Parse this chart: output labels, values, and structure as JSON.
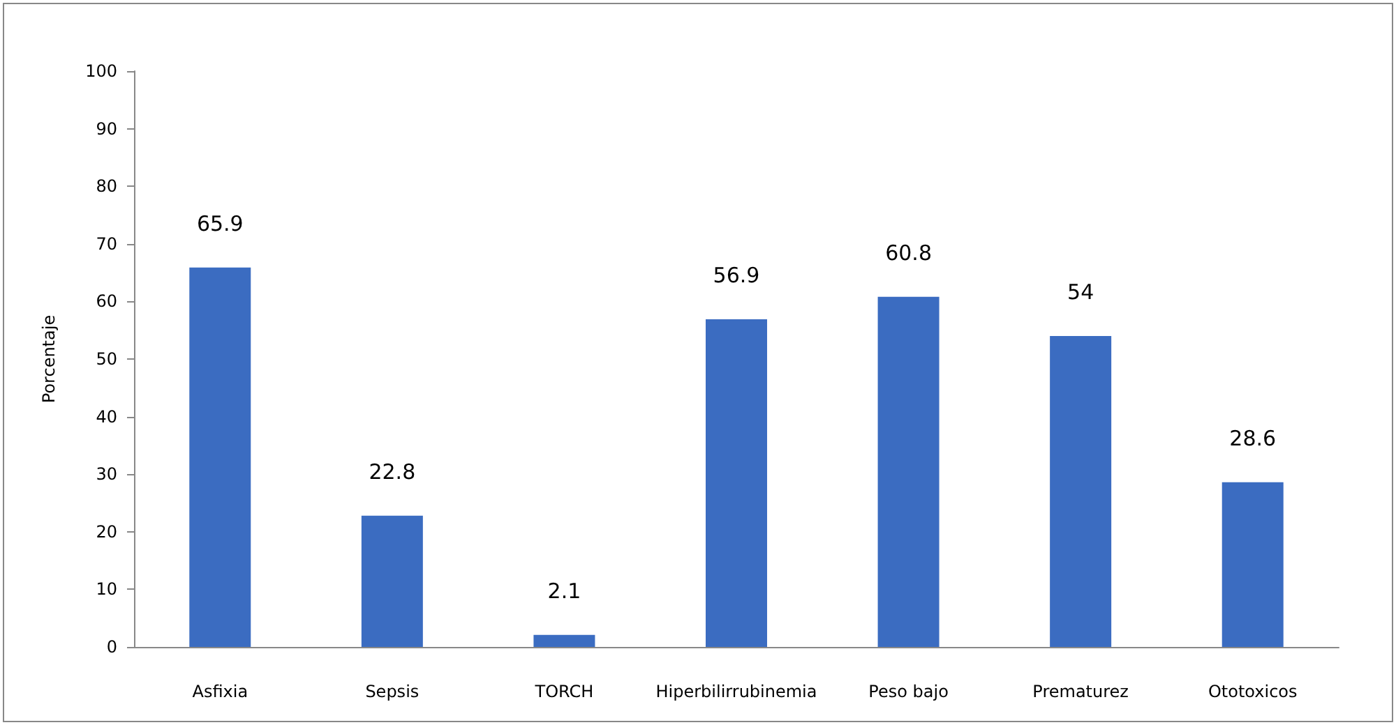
{
  "chart_data": {
    "type": "bar",
    "ylabel": "Porcentaje",
    "categories": [
      "Asfixia",
      "Sepsis",
      "TORCH",
      "Hiperbilirrubinemia",
      "Peso bajo",
      "Prematurez",
      "Ototoxicos"
    ],
    "values": [
      65.9,
      22.8,
      2.1,
      56.9,
      60.8,
      54,
      28.6
    ],
    "color": "#3b6cc1",
    "ylim": [
      0,
      100
    ],
    "yticks": [
      0,
      10,
      20,
      30,
      40,
      50,
      60,
      70,
      80,
      90,
      100
    ],
    "grid": false,
    "data_labels": true
  }
}
